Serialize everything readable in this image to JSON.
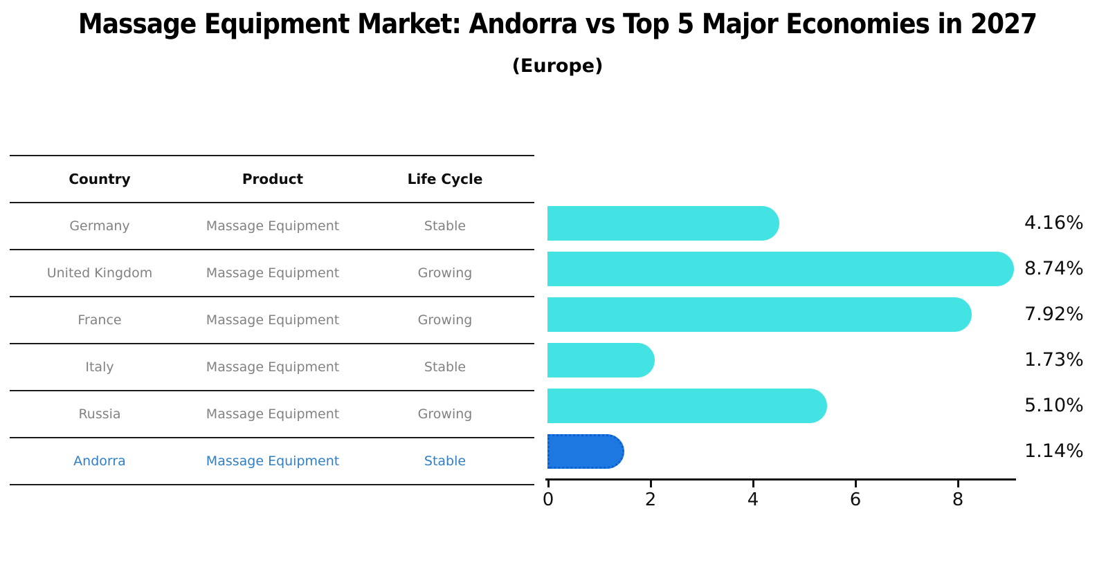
{
  "title": "Massage Equipment Market: Andorra vs Top 5 Major Economies in 2027",
  "subtitle": "(Europe)",
  "table": {
    "headers": {
      "country": "Country",
      "product": "Product",
      "life_cycle": "Life Cycle"
    },
    "rows": [
      {
        "country": "Germany",
        "product": "Massage Equipment",
        "life_cycle": "Stable"
      },
      {
        "country": "United Kingdom",
        "product": "Massage Equipment",
        "life_cycle": "Growing"
      },
      {
        "country": "France",
        "product": "Massage Equipment",
        "life_cycle": "Growing"
      },
      {
        "country": "Italy",
        "product": "Massage Equipment",
        "life_cycle": "Stable"
      },
      {
        "country": "Russia",
        "product": "Massage Equipment",
        "life_cycle": "Growing"
      },
      {
        "country": "Andorra",
        "product": "Massage Equipment",
        "life_cycle": "Stable"
      }
    ],
    "highlight_row": "Andorra",
    "highlight_color": "#2E7FC6",
    "body_text_color": "#828282",
    "header_text_color": "#0d0d0d"
  },
  "chart_data": {
    "type": "bar",
    "orientation": "horizontal",
    "categories": [
      "Germany",
      "United Kingdom",
      "France",
      "Italy",
      "Russia",
      "Andorra"
    ],
    "values": [
      4.16,
      8.74,
      7.92,
      1.73,
      5.1,
      1.14
    ],
    "value_labels": [
      "4.16%",
      "8.74%",
      "7.92%",
      "1.73%",
      "5.10%",
      "1.14%"
    ],
    "xticks": [
      0,
      2,
      4,
      6,
      8
    ],
    "xlim": [
      0,
      9.15
    ],
    "bar_color": "#44E3E3",
    "highlight_index": 5,
    "highlight_color": "#1E78E1",
    "highlight_border_color": "#0C5FD0",
    "axis_color": "#111111",
    "grid": false,
    "legend": false
  }
}
